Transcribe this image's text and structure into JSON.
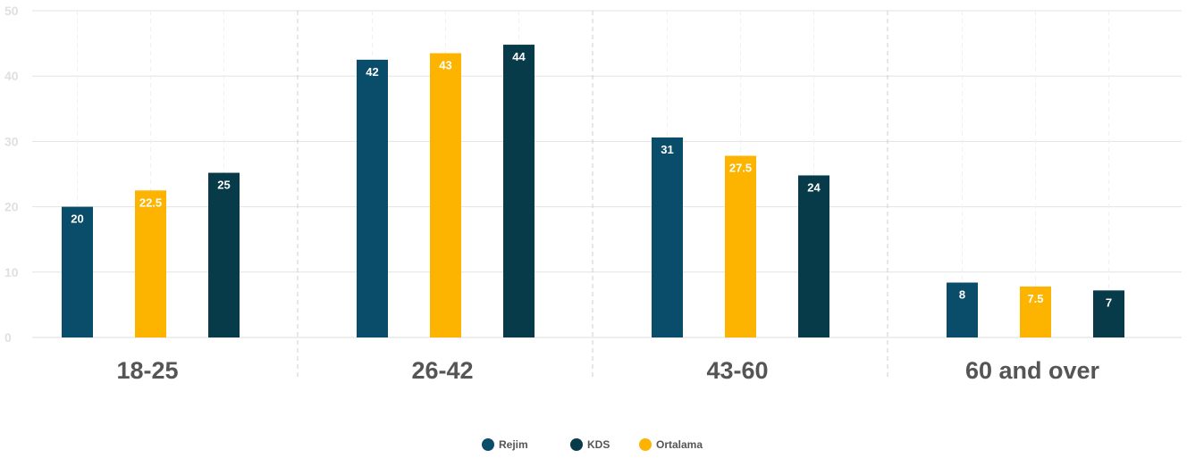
{
  "chart_data": {
    "type": "bar",
    "categories": [
      "18-25",
      "26-42",
      "43-60",
      "60 and over"
    ],
    "series": [
      {
        "name": "Rejim",
        "color": "#0a4d6b",
        "values": [
          20,
          42,
          31,
          8
        ]
      },
      {
        "name": "Ortalama",
        "color": "#fdb400",
        "values": [
          22.5,
          43,
          27.5,
          7.5
        ]
      },
      {
        "name": "KDS",
        "color": "#073b4a",
        "values": [
          25,
          44,
          24,
          7
        ]
      }
    ],
    "bar_value_scale": [
      [
        20,
        22.5,
        25.2
      ],
      [
        42.5,
        43.5,
        44.8
      ],
      [
        30.6,
        27.8,
        24.8
      ],
      [
        8.4,
        7.8,
        7.2
      ]
    ],
    "ylim": [
      0,
      50
    ],
    "yticks": [
      "0",
      "10",
      "20",
      "30",
      "40",
      "50"
    ],
    "grid": true,
    "legend": {
      "placement": "bottom-center",
      "items": [
        {
          "label": "Rejim",
          "color": "#0a4d6b"
        },
        {
          "label": "KDS",
          "color": "#073b4a"
        },
        {
          "label": "Ortalama",
          "color": "#fdb400"
        }
      ]
    }
  }
}
